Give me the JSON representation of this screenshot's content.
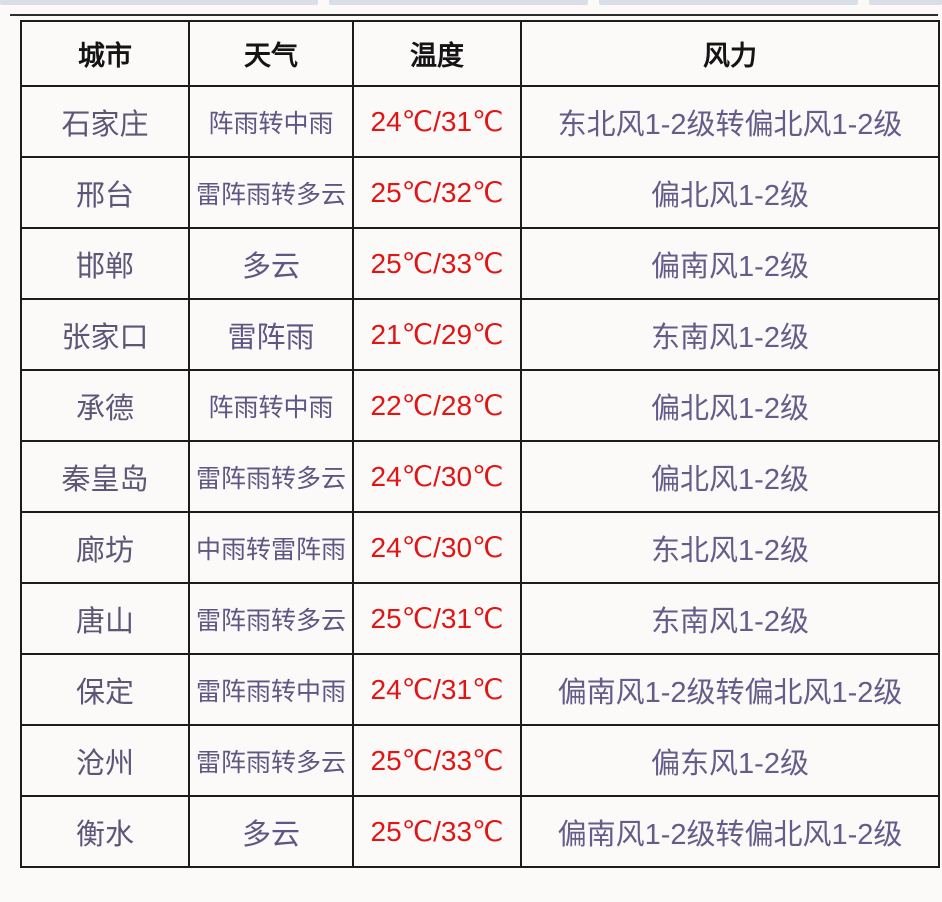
{
  "table": {
    "headers": [
      "城市",
      "天气",
      "温度",
      "风力"
    ],
    "rows": [
      {
        "city": "石家庄",
        "weather": "阵雨转中雨",
        "temp": "24℃/31℃",
        "wind": "东北风1-2级转偏北风1-2级"
      },
      {
        "city": "邢台",
        "weather": "雷阵雨转多云",
        "temp": "25℃/32℃",
        "wind": "偏北风1-2级"
      },
      {
        "city": "邯郸",
        "weather": "多云",
        "temp": "25℃/33℃",
        "wind": "偏南风1-2级"
      },
      {
        "city": "张家口",
        "weather": "雷阵雨",
        "temp": "21℃/29℃",
        "wind": "东南风1-2级"
      },
      {
        "city": "承德",
        "weather": "阵雨转中雨",
        "temp": "22℃/28℃",
        "wind": "偏北风1-2级"
      },
      {
        "city": "秦皇岛",
        "weather": "雷阵雨转多云",
        "temp": "24℃/30℃",
        "wind": "偏北风1-2级"
      },
      {
        "city": "廊坊",
        "weather": "中雨转雷阵雨",
        "temp": "24℃/30℃",
        "wind": "东北风1-2级"
      },
      {
        "city": "唐山",
        "weather": "雷阵雨转多云",
        "temp": "25℃/31℃",
        "wind": "东南风1-2级"
      },
      {
        "city": "保定",
        "weather": "雷阵雨转中雨",
        "temp": "24℃/31℃",
        "wind": "偏南风1-2级转偏北风1-2级"
      },
      {
        "city": "沧州",
        "weather": "雷阵雨转多云",
        "temp": "25℃/33℃",
        "wind": "偏东风1-2级"
      },
      {
        "city": "衡水",
        "weather": "多云",
        "temp": "25℃/33℃",
        "wind": "偏南风1-2级转偏北风1-2级"
      }
    ]
  },
  "colors": {
    "city_text": "#5e5677",
    "weather_text": "#5e5683",
    "temperature_text": "#e11513",
    "wind_text": "#665c8a",
    "header_text": "#141414",
    "table_border": "#1c1c1c",
    "cell_background": "#fcf9f9",
    "tab_strip": "#d9dee7"
  }
}
